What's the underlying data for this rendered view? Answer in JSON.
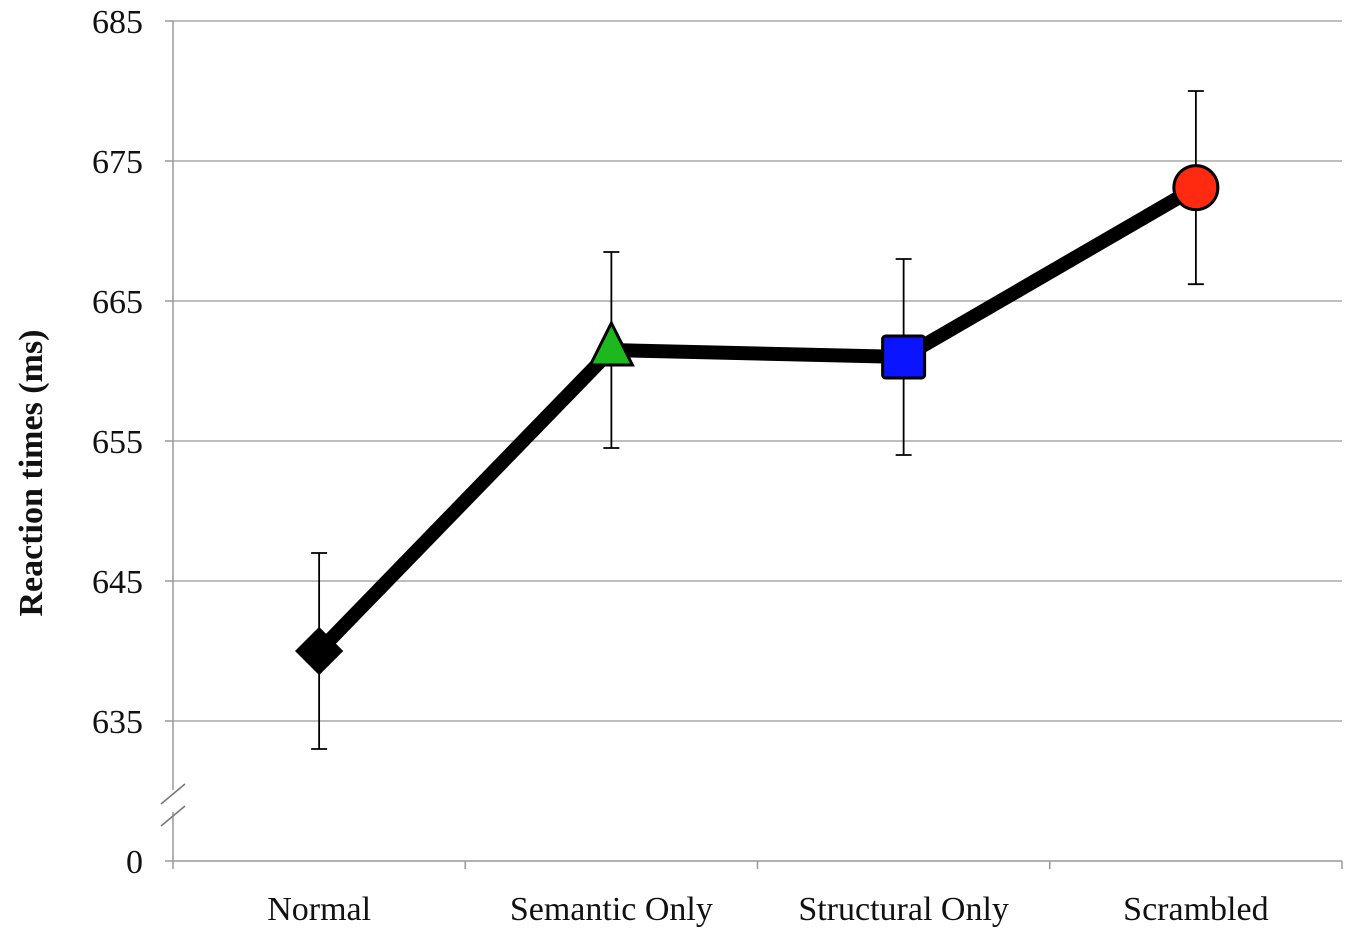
{
  "chart_data": {
    "type": "line",
    "title": "",
    "xlabel": "",
    "ylabel": "Reaction times (ms)",
    "categories": [
      "Normal",
      "Semantic Only",
      "Structural Only",
      "Scrambled"
    ],
    "series": [
      {
        "values": [
          640.0,
          661.5,
          661.0,
          673.1
        ],
        "errors": [
          7.0,
          7.0,
          7.0,
          6.9
        ],
        "markers": [
          "diamond",
          "triangle",
          "square",
          "circle"
        ],
        "marker_colors": [
          "#000000",
          "#1db81d",
          "#0a14ff",
          "#ff2a10"
        ],
        "line_color": "#000000"
      }
    ],
    "yticks": [
      685,
      675,
      665,
      655,
      645,
      635,
      0
    ],
    "ylim": [
      635,
      685
    ],
    "axis_break": true,
    "grid": true
  }
}
